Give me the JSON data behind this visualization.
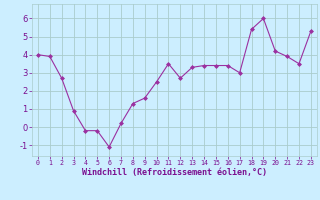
{
  "x": [
    0,
    1,
    2,
    3,
    4,
    5,
    6,
    7,
    8,
    9,
    10,
    11,
    12,
    13,
    14,
    15,
    16,
    17,
    18,
    19,
    20,
    21,
    22,
    23
  ],
  "y": [
    4.0,
    3.9,
    2.7,
    0.9,
    -0.2,
    -0.2,
    -1.1,
    0.2,
    1.3,
    1.6,
    2.5,
    3.5,
    2.7,
    3.3,
    3.4,
    3.4,
    3.4,
    3.0,
    5.4,
    6.0,
    4.2,
    3.9,
    3.5,
    5.3
  ],
  "line_color": "#9b30a0",
  "marker": "D",
  "marker_size": 2.0,
  "background_color": "#cceeff",
  "grid_color": "#aacccc",
  "xlabel": "Windchill (Refroidissement éolien,°C)",
  "xlabel_color": "#7b1090",
  "tick_color": "#7b1090",
  "xlim": [
    -0.5,
    23.5
  ],
  "ylim": [
    -1.6,
    6.8
  ],
  "yticks": [
    -1,
    0,
    1,
    2,
    3,
    4,
    5,
    6
  ],
  "xticks": [
    0,
    1,
    2,
    3,
    4,
    5,
    6,
    7,
    8,
    9,
    10,
    11,
    12,
    13,
    14,
    15,
    16,
    17,
    18,
    19,
    20,
    21,
    22,
    23
  ],
  "xlabel_fontsize": 6.0,
  "tick_fontsize_x": 4.8,
  "tick_fontsize_y": 6.0
}
